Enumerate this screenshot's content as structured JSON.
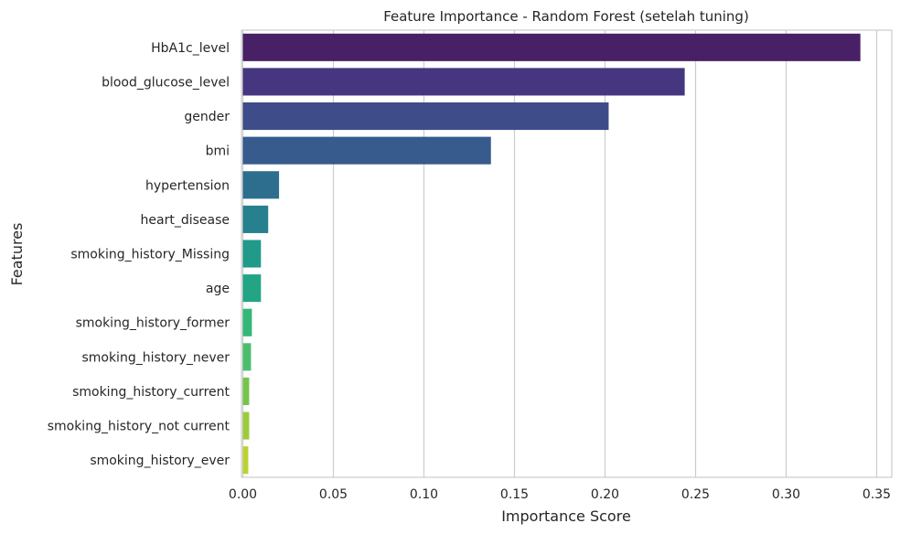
{
  "chart_data": {
    "type": "bar",
    "orientation": "horizontal",
    "title": "Feature Importance - Random Forest (setelah tuning)",
    "xlabel": "Importance Score",
    "ylabel": "Features",
    "xlim": [
      0,
      0.36
    ],
    "xticks": [
      0,
      0.05,
      0.1,
      0.15,
      0.2,
      0.25,
      0.3,
      0.35
    ],
    "xtick_labels": [
      "0.00",
      "0.05",
      "0.10",
      "0.15",
      "0.20",
      "0.25",
      "0.30",
      "0.35"
    ],
    "grid": "vertical",
    "palette": "viridis",
    "categories": [
      "HbA1c_level",
      "blood_glucose_level",
      "gender",
      "bmi",
      "hypertension",
      "heart_disease",
      "smoking_history_Missing",
      "age",
      "smoking_history_former",
      "smoking_history_never",
      "smoking_history_current",
      "smoking_history_not current",
      "smoking_history_ever"
    ],
    "values": [
      0.341,
      0.244,
      0.202,
      0.137,
      0.02,
      0.014,
      0.01,
      0.01,
      0.005,
      0.0045,
      0.0035,
      0.0035,
      0.003
    ],
    "colors": [
      "#482066",
      "#463680",
      "#3e4c8a",
      "#365b8c",
      "#2d6e8e",
      "#26808e",
      "#219a8a",
      "#23a483",
      "#35b779",
      "#4cbd6d",
      "#75c54d",
      "#9ccb3c",
      "#bcd233"
    ]
  }
}
